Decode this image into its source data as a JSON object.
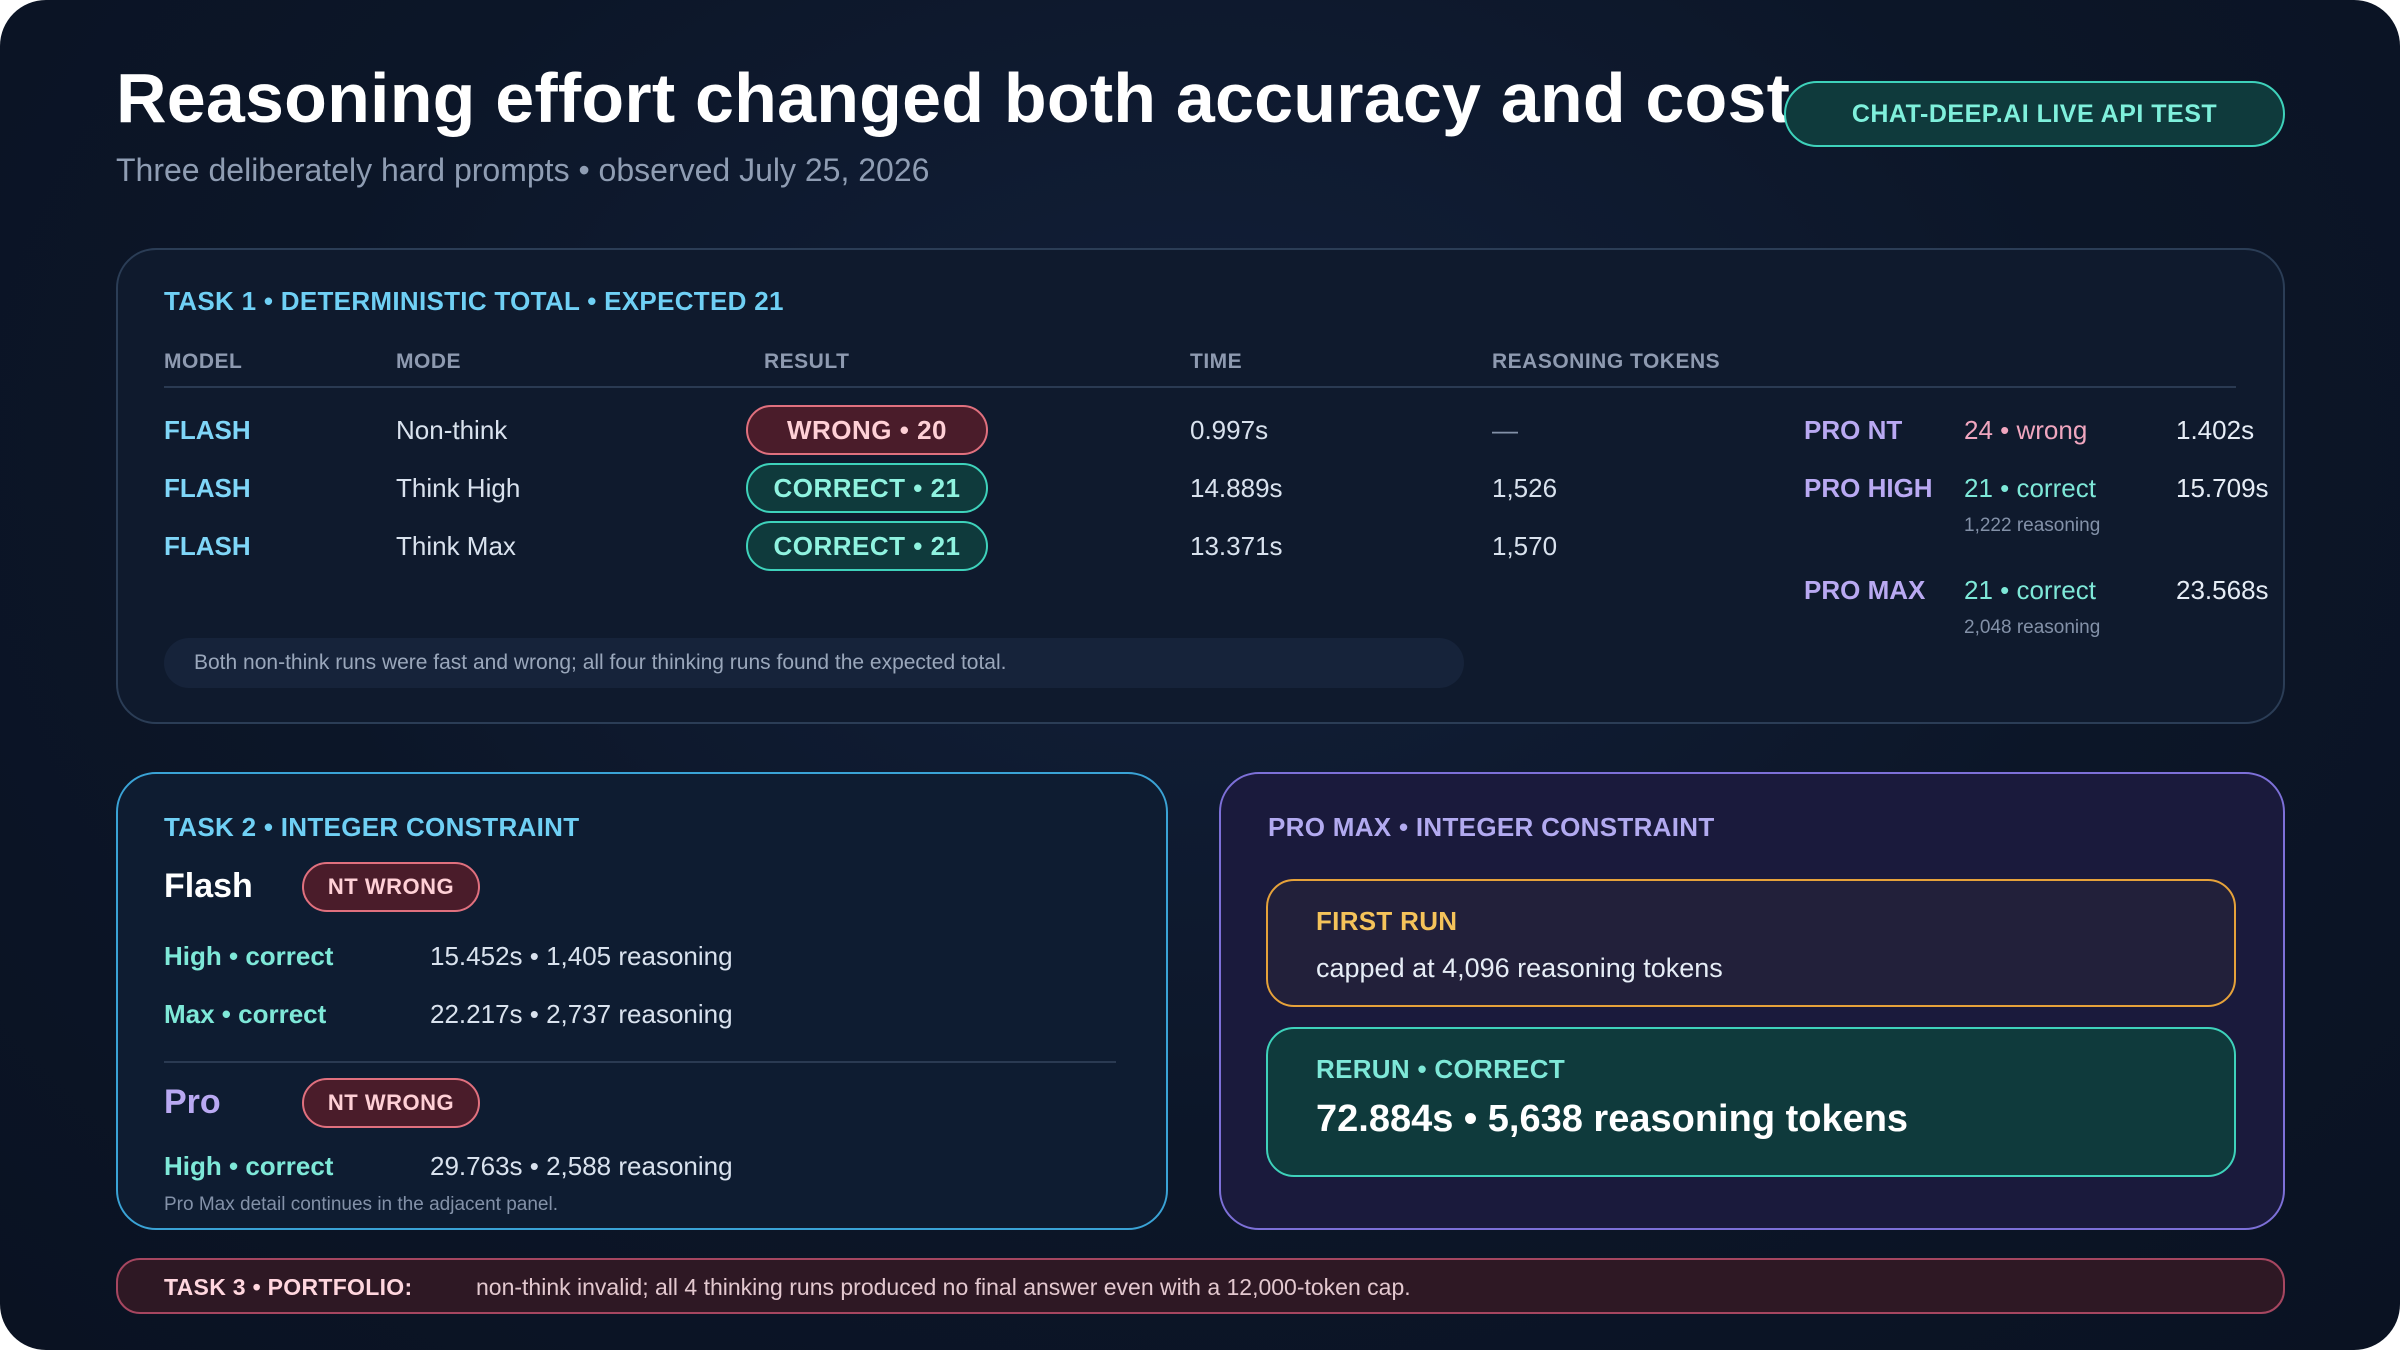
{
  "header": {
    "title": "Reasoning effort changed both accuracy and cost",
    "subtitle": "Three deliberately hard prompts • observed July 25, 2026",
    "badge": "CHAT-DEEP.AI LIVE API TEST"
  },
  "task1": {
    "heading": "TASK 1 • DETERMINISTIC TOTAL • EXPECTED 21",
    "columns": [
      "MODEL",
      "MODE",
      "RESULT",
      "TIME",
      "REASONING TOKENS"
    ],
    "rows": [
      {
        "model": "FLASH",
        "mode": "Non-think",
        "result": "WRONG • 20",
        "status": "wrong",
        "time": "0.997s",
        "tokens": "—"
      },
      {
        "model": "FLASH",
        "mode": "Think High",
        "result": "CORRECT • 21",
        "status": "correct",
        "time": "14.889s",
        "tokens": "1,526"
      },
      {
        "model": "FLASH",
        "mode": "Think Max",
        "result": "CORRECT • 21",
        "status": "correct",
        "time": "13.371s",
        "tokens": "1,570"
      }
    ],
    "pro": [
      {
        "label": "PRO NT",
        "value": "24 • wrong",
        "status": "wrong",
        "sub": "",
        "time": "1.402s"
      },
      {
        "label": "PRO HIGH",
        "value": "21 • correct",
        "status": "correct",
        "sub": "1,222 reasoning",
        "time": "15.709s"
      },
      {
        "label": "PRO MAX",
        "value": "21 • correct",
        "status": "correct",
        "sub": "2,048 reasoning",
        "time": "23.568s"
      }
    ],
    "note": "Both non-think runs were fast and wrong; all four thinking runs found the expected total."
  },
  "task2": {
    "heading": "TASK 2 • INTEGER CONSTRAINT",
    "flash": {
      "name": "Flash",
      "nt": "NT WRONG",
      "rows": [
        {
          "label": "High • correct",
          "value": "15.452s • 1,405 reasoning"
        },
        {
          "label": "Max • correct",
          "value": "22.217s • 2,737 reasoning"
        }
      ]
    },
    "pro": {
      "name": "Pro",
      "nt": "NT WRONG",
      "rows": [
        {
          "label": "High • correct",
          "value": "29.763s • 2,588 reasoning"
        }
      ]
    },
    "note": "Pro Max detail continues in the adjacent panel."
  },
  "promax": {
    "heading": "PRO MAX • INTEGER CONSTRAINT",
    "first_label": "FIRST RUN",
    "first_text": "capped at 4,096 reasoning tokens",
    "rerun_label": "RERUN • CORRECT",
    "rerun_text": "72.884s • 5,638 reasoning tokens"
  },
  "task3": {
    "label": "TASK 3 • PORTFOLIO:",
    "text": "non-think invalid; all 4 thinking runs produced no final answer even with a 12,000-token cap."
  }
}
